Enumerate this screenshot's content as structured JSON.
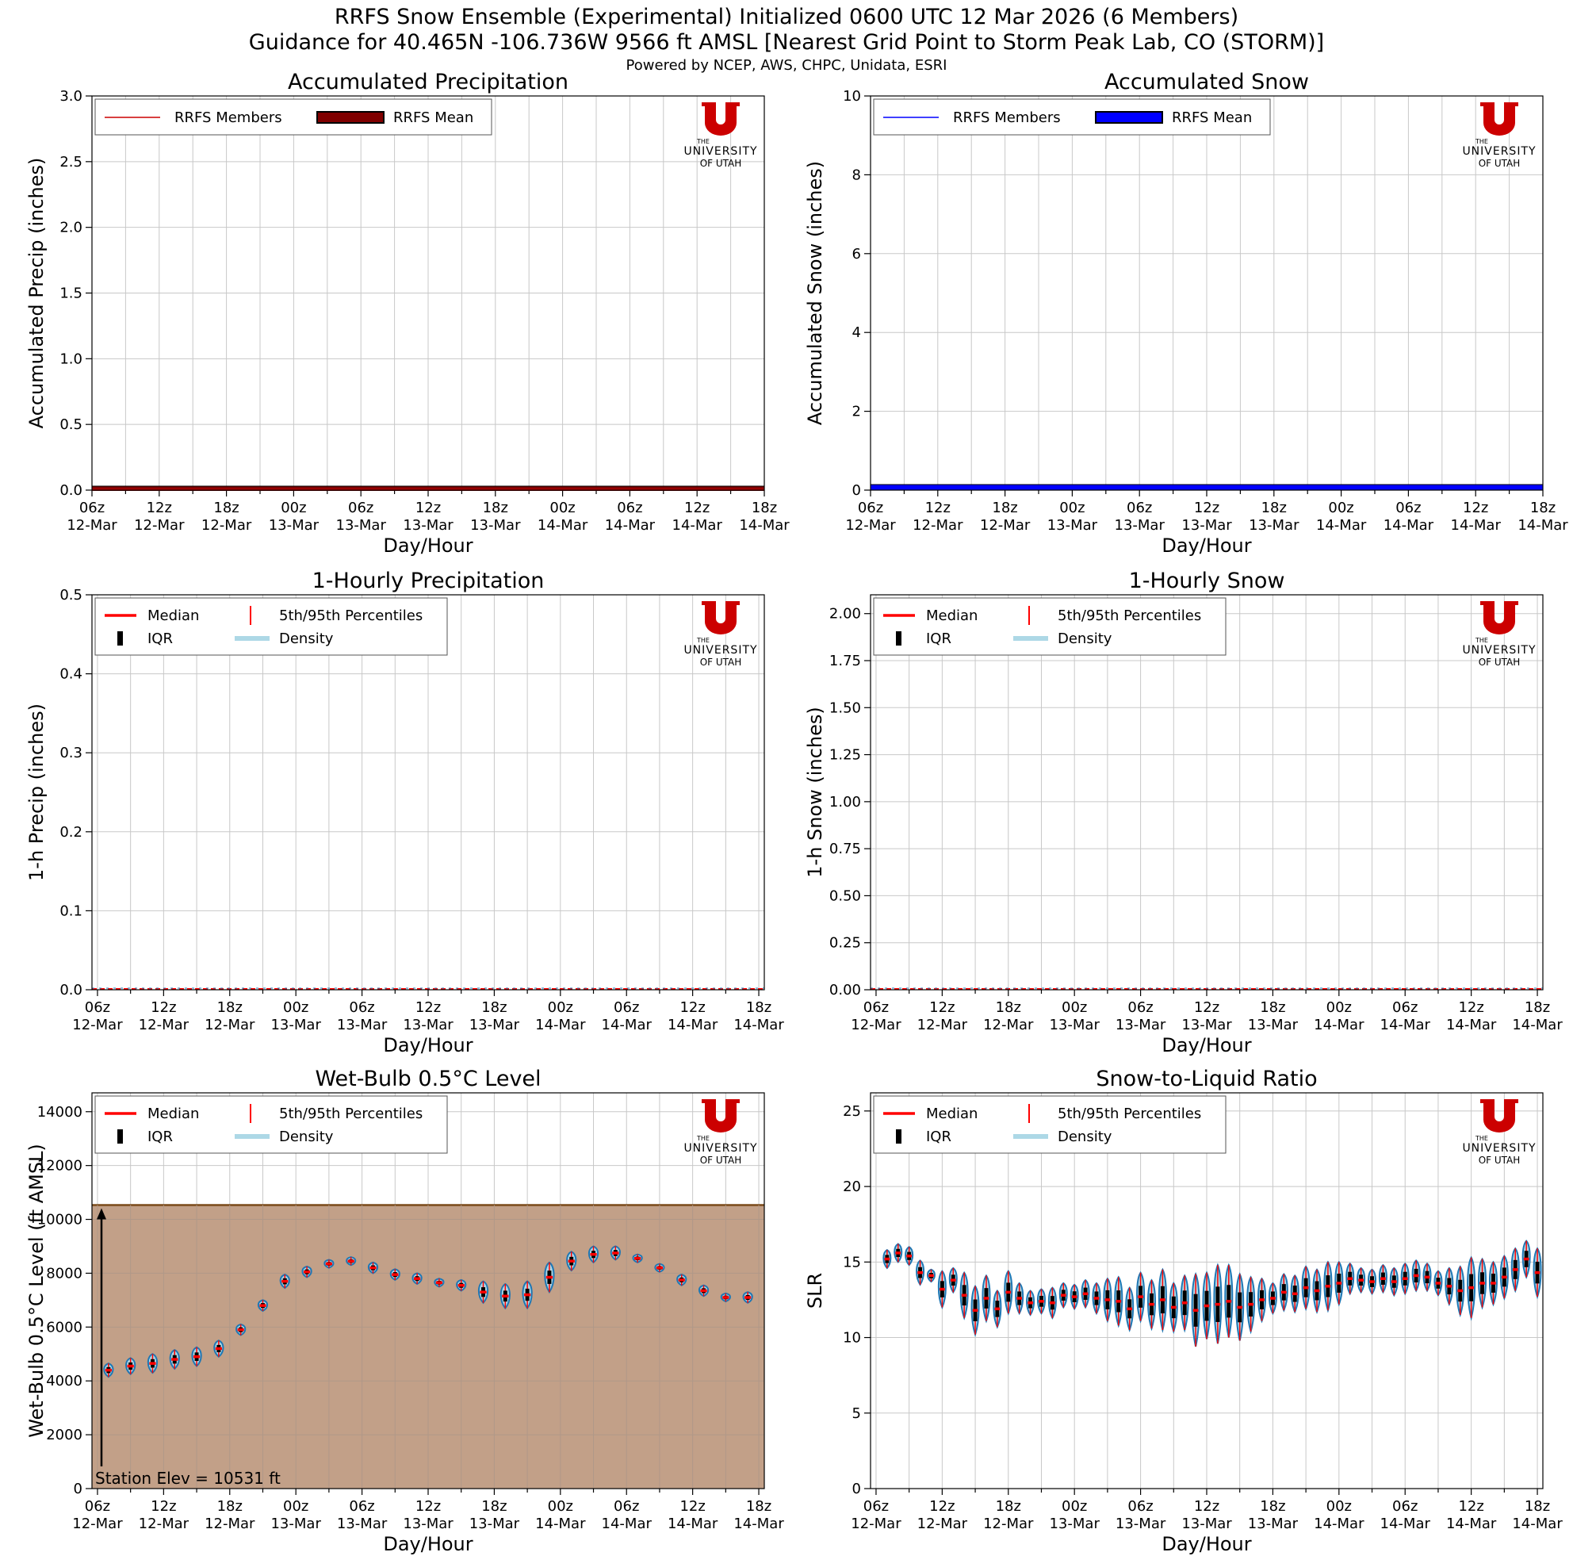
{
  "header": {
    "title": "RRFS Snow Ensemble (Experimental) Initialized 0600 UTC 12 Mar 2026 (6 Members)",
    "subtitle": "Guidance for 40.465N -106.736W 9566 ft AMSL [Nearest Grid Point to Storm Peak Lab, CO (STORM)]",
    "powered_by": "Powered by NCEP, AWS, CHPC, Unidata, ESRI"
  },
  "logo": {
    "line1": "THE",
    "line2": "UNIVERSITY",
    "line3": "OF UTAH",
    "color": "#cc0000"
  },
  "colors": {
    "member_precip": "#cc0000",
    "mean_precip": "#800000",
    "member_snow": "#0000ff",
    "mean_snow": "#0000ff",
    "median": "#ff0000",
    "iqr": "#000000",
    "percentile": "#ff0000",
    "density_fill": "#add8e6",
    "density_edge": "#1f77b4",
    "terrain": "#c2a088",
    "terrain_edge": "#7a4a1a",
    "grid": "#c8c8c8"
  },
  "x_ticks": [
    "06z\n12-Mar",
    "12z\n12-Mar",
    "18z\n12-Mar",
    "00z\n13-Mar",
    "06z\n13-Mar",
    "12z\n13-Mar",
    "18z\n13-Mar",
    "00z\n14-Mar",
    "06z\n14-Mar",
    "12z\n14-Mar",
    "18z\n14-Mar"
  ],
  "chart_data": [
    {
      "type": "line",
      "title": "Accumulated Precipitation",
      "xlabel": "Day/Hour",
      "ylabel": "Accumulated Precip (inches)",
      "ylim": [
        0,
        3.0
      ],
      "yticks": [
        "0.0",
        "0.5",
        "1.0",
        "1.5",
        "2.0",
        "2.5",
        "3.0"
      ],
      "ytick_values": [
        0,
        0.5,
        1.0,
        1.5,
        2.0,
        2.5,
        3.0
      ],
      "x_hours": [
        0,
        60
      ],
      "legend": [
        "RRFS Members",
        "RRFS Mean"
      ],
      "series": [
        {
          "name": "RRFS Members",
          "values": [
            0,
            0
          ]
        },
        {
          "name": "RRFS Mean",
          "values": [
            0,
            0
          ]
        }
      ]
    },
    {
      "type": "line",
      "title": "Accumulated Snow",
      "xlabel": "Day/Hour",
      "ylabel": "Accumulated Snow (inches)",
      "ylim": [
        0,
        10
      ],
      "yticks": [
        "0",
        "2",
        "4",
        "6",
        "8",
        "10"
      ],
      "ytick_values": [
        0,
        2,
        4,
        6,
        8,
        10
      ],
      "x_hours": [
        0,
        60
      ],
      "legend": [
        "RRFS Members",
        "RRFS Mean"
      ],
      "series": [
        {
          "name": "RRFS Members",
          "values": [
            0,
            0
          ]
        },
        {
          "name": "RRFS Mean",
          "values": [
            0,
            0
          ]
        }
      ]
    },
    {
      "type": "violin",
      "title": "1-Hourly Precipitation",
      "xlabel": "Day/Hour",
      "ylabel": "1-h Precip (inches)",
      "ylim": [
        0,
        0.5
      ],
      "yticks": [
        "0.0",
        "0.1",
        "0.2",
        "0.3",
        "0.4",
        "0.5"
      ],
      "ytick_values": [
        0,
        0.1,
        0.2,
        0.3,
        0.4,
        0.5
      ],
      "legend": [
        "Median",
        "5th/95th Percentiles",
        "IQR",
        "Density"
      ],
      "median_all": 0.0
    },
    {
      "type": "violin",
      "title": "1-Hourly Snow",
      "xlabel": "Day/Hour",
      "ylabel": "1-h Snow (inches)",
      "ylim": [
        0,
        2.1
      ],
      "yticks": [
        "0.00",
        "0.25",
        "0.50",
        "0.75",
        "1.00",
        "1.25",
        "1.50",
        "1.75",
        "2.00"
      ],
      "ytick_values": [
        0,
        0.25,
        0.5,
        0.75,
        1.0,
        1.25,
        1.5,
        1.75,
        2.0
      ],
      "legend": [
        "Median",
        "5th/95th Percentiles",
        "IQR",
        "Density"
      ],
      "median_all": 0.0
    },
    {
      "type": "violin",
      "title": "Wet-Bulb 0.5°C Level",
      "xlabel": "Day/Hour",
      "ylabel": "Wet-Bulb 0.5°C Level (ft AMSL)",
      "ylim": [
        0,
        14700
      ],
      "yticks": [
        "0",
        "2000",
        "4000",
        "6000",
        "8000",
        "10000",
        "12000",
        "14000"
      ],
      "ytick_values": [
        0,
        2000,
        4000,
        6000,
        8000,
        10000,
        12000,
        14000
      ],
      "legend": [
        "Median",
        "5th/95th Percentiles",
        "IQR",
        "Density"
      ],
      "station_elev": 10531,
      "station_label": "Station Elev = 10531 ft",
      "hours": [
        1,
        3,
        5,
        7,
        9,
        11,
        13,
        15,
        17,
        19,
        21,
        23,
        25,
        27,
        29,
        31,
        33,
        35,
        37,
        39,
        41,
        43,
        45,
        47,
        49,
        51,
        53,
        55,
        57,
        59
      ],
      "medians": [
        4400,
        4550,
        4650,
        4800,
        4900,
        5200,
        5900,
        6800,
        7700,
        8050,
        8350,
        8450,
        8200,
        7950,
        7800,
        7650,
        7550,
        7300,
        7150,
        7200,
        7850,
        8450,
        8700,
        8750,
        8550,
        8200,
        7750,
        7350,
        7100,
        7100
      ],
      "spreads": [
        250,
        300,
        350,
        350,
        350,
        300,
        200,
        200,
        250,
        200,
        150,
        150,
        200,
        200,
        200,
        150,
        200,
        400,
        450,
        500,
        550,
        350,
        300,
        250,
        150,
        150,
        200,
        200,
        150,
        200
      ]
    },
    {
      "type": "violin",
      "title": "Snow-to-Liquid Ratio",
      "xlabel": "Day/Hour",
      "ylabel": "SLR",
      "ylim": [
        0,
        26.2
      ],
      "yticks": [
        "0",
        "5",
        "10",
        "15",
        "20",
        "25"
      ],
      "ytick_values": [
        0,
        5,
        10,
        15,
        20,
        25
      ],
      "legend": [
        "Median",
        "5th/95th Percentiles",
        "IQR",
        "Density"
      ],
      "hours": [
        1,
        2,
        3,
        4,
        5,
        6,
        7,
        8,
        9,
        10,
        11,
        12,
        13,
        14,
        15,
        16,
        17,
        18,
        19,
        20,
        21,
        22,
        23,
        24,
        25,
        26,
        27,
        28,
        29,
        30,
        31,
        32,
        33,
        34,
        35,
        36,
        37,
        38,
        39,
        40,
        41,
        42,
        43,
        44,
        45,
        46,
        47,
        48,
        49,
        50,
        51,
        52,
        53,
        54,
        55,
        56,
        57,
        58,
        59,
        60
      ],
      "medians": [
        15.2,
        15.6,
        15.4,
        14.3,
        14.1,
        13.2,
        13.8,
        12.8,
        11.8,
        12.6,
        11.9,
        13.0,
        12.6,
        12.3,
        12.4,
        12.3,
        12.8,
        12.7,
        12.9,
        12.6,
        12.5,
        12.4,
        11.9,
        12.7,
        12.2,
        12.5,
        12.0,
        12.3,
        11.8,
        12.1,
        12.2,
        12.4,
        12.0,
        12.2,
        12.5,
        12.6,
        13.0,
        12.9,
        13.3,
        13.1,
        13.4,
        13.6,
        13.9,
        13.8,
        13.7,
        13.9,
        13.7,
        13.9,
        14.1,
        14.0,
        13.6,
        13.4,
        13.1,
        13.3,
        13.6,
        13.6,
        14.0,
        14.5,
        15.2,
        14.3
      ],
      "spreads": [
        0.6,
        0.6,
        0.6,
        0.8,
        0.4,
        1.2,
        0.8,
        1.5,
        1.6,
        1.5,
        1.2,
        1.4,
        1.0,
        0.8,
        0.8,
        1.0,
        0.8,
        0.8,
        0.9,
        1.0,
        1.4,
        1.6,
        1.4,
        1.6,
        1.6,
        2.0,
        1.6,
        1.8,
        2.4,
        2.2,
        2.6,
        2.4,
        2.2,
        1.8,
        1.4,
        1.0,
        1.2,
        1.2,
        1.4,
        1.4,
        1.6,
        1.4,
        1.0,
        0.8,
        0.8,
        0.9,
        0.9,
        1.0,
        1.0,
        0.9,
        0.8,
        1.2,
        1.6,
        2.0,
        1.6,
        1.4,
        1.4,
        1.4,
        1.2,
        1.6
      ]
    }
  ]
}
